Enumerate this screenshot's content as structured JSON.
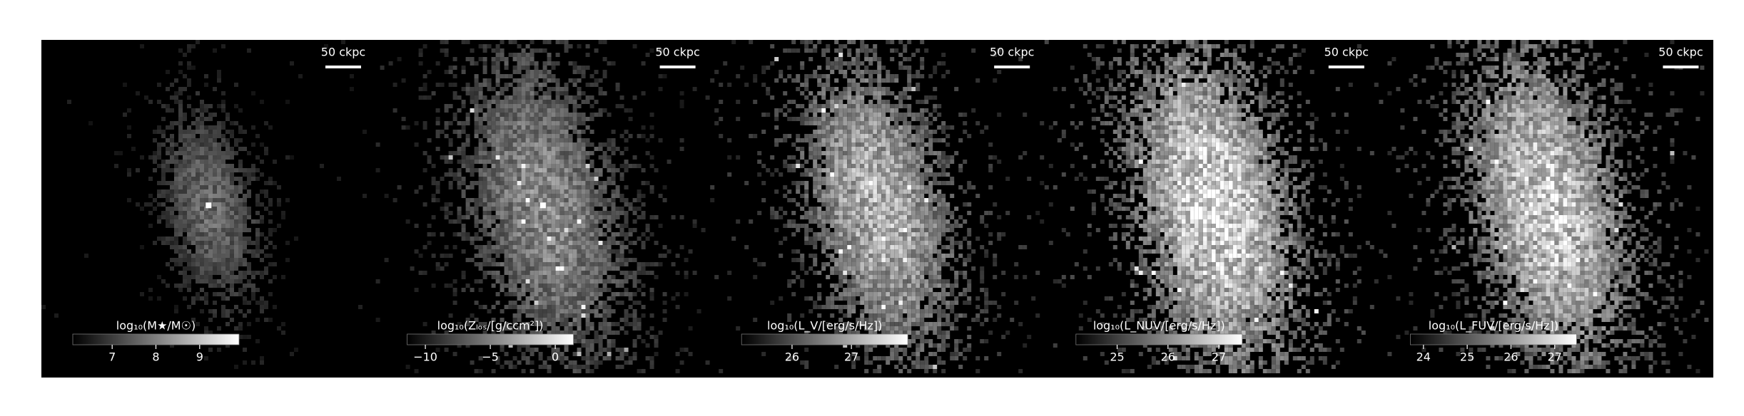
{
  "panels": [
    {
      "scalebar": "50 ckpc",
      "colorbar": {
        "label": "log₁₀(M★/M☉)",
        "lim": [
          6.1,
          9.9
        ],
        "ticks": [
          7,
          8,
          9
        ]
      }
    },
    {
      "scalebar": "50 ckpc",
      "colorbar": {
        "label": "log₁₀(Zₗₒₛ/[g/ccm²])",
        "lim": [
          -11.4,
          1.4
        ],
        "ticks": [
          {
            "value": -10,
            "label": "−10"
          },
          {
            "value": -5,
            "label": "−5"
          },
          0
        ]
      }
    },
    {
      "scalebar": "50 ckpc",
      "colorbar": {
        "label": "log₁₀(L_V/[erg/s/Hz])",
        "lim": [
          25.15,
          27.95
        ],
        "ticks": [
          26,
          27
        ]
      }
    },
    {
      "scalebar": "50 ckpc",
      "colorbar": {
        "label": "log₁₀(L_NUV/[erg/s/Hz])",
        "lim": [
          24.19,
          27.46
        ],
        "ticks": [
          25,
          26,
          27
        ]
      }
    },
    {
      "scalebar": "50 ckpc",
      "colorbar": {
        "label": "log₁₀(L_FUV/[erg/s/Hz])",
        "lim": [
          23.7,
          27.5
        ],
        "ticks": [
          24,
          25,
          26,
          27
        ]
      }
    }
  ]
}
